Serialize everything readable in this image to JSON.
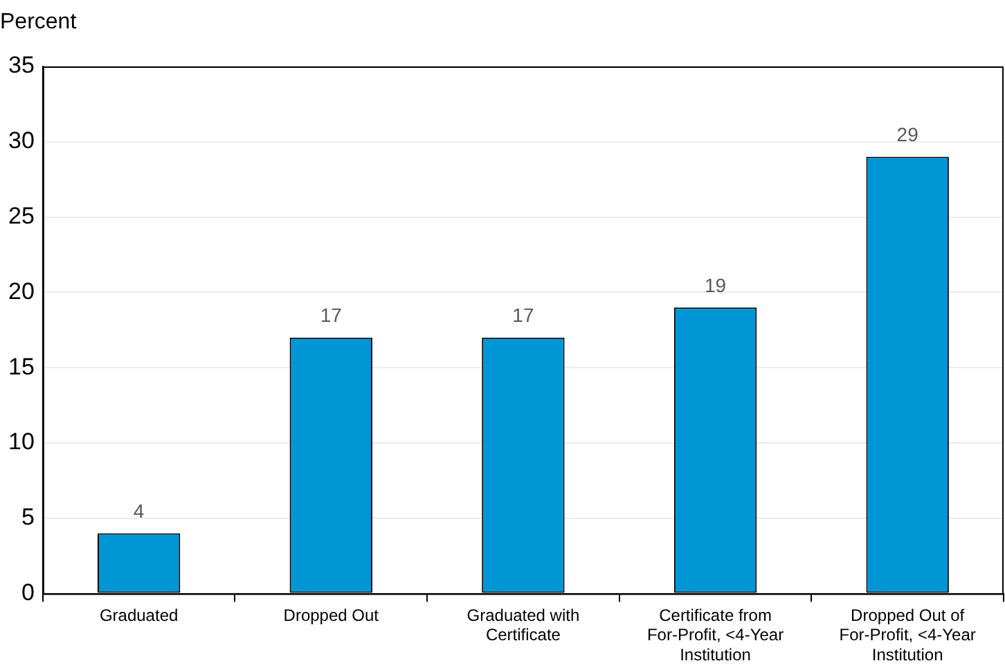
{
  "chart_data": {
    "type": "bar",
    "ylabel": "Percent",
    "categories": [
      "Graduated",
      "Dropped Out",
      "Graduated with Certificate",
      "Certificate from For-Profit, <4-Year Institution",
      "Dropped Out of For-Profit, <4-Year Institution"
    ],
    "values": [
      4,
      17,
      17,
      19,
      29
    ],
    "color": "#0096d6",
    "ylim": [
      0,
      35
    ],
    "yticks": [
      0,
      5,
      10,
      15,
      20,
      25,
      30,
      35
    ],
    "grid": "y",
    "data_labels": true,
    "legend": false
  }
}
